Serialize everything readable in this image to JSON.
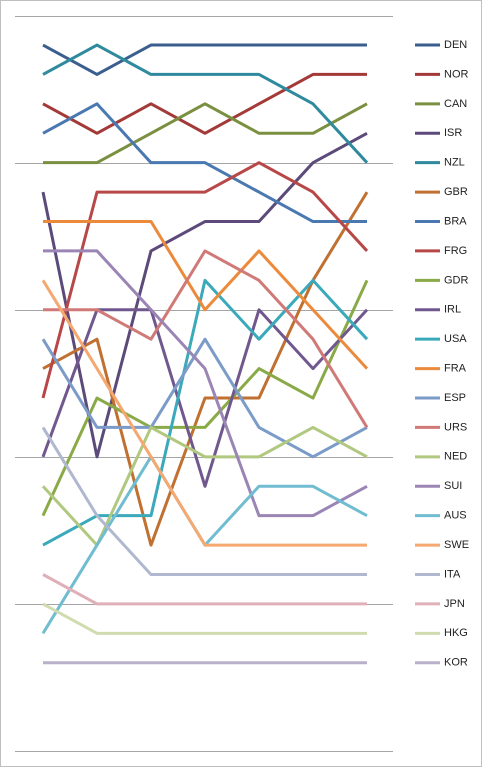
{
  "chart_data": {
    "type": "line",
    "ylim": [
      0,
      25
    ],
    "yticks": [
      0,
      5,
      10,
      15,
      20,
      25
    ],
    "grid": true,
    "inverted": true,
    "legend": "right",
    "series": [
      {
        "name": "DEN",
        "color": "#3a5f8f",
        "values": [
          1,
          2,
          1,
          1,
          1,
          1,
          1
        ]
      },
      {
        "name": "NOR",
        "color": "#a33a38",
        "values": [
          3,
          4,
          3,
          4,
          3,
          2,
          2
        ]
      },
      {
        "name": "CAN",
        "color": "#7a9040",
        "values": [
          5,
          5,
          4,
          3,
          4,
          4,
          3
        ]
      },
      {
        "name": "ISR",
        "color": "#5c4a7a",
        "values": [
          6,
          15,
          8,
          7,
          7,
          5,
          4
        ]
      },
      {
        "name": "NZL",
        "color": "#2f8a9e",
        "values": [
          2,
          1,
          2,
          2,
          2,
          3,
          5
        ]
      },
      {
        "name": "GBR",
        "color": "#c07030",
        "values": [
          12,
          11,
          18,
          13,
          13,
          9,
          6
        ]
      },
      {
        "name": "BRA",
        "color": "#4a78b0",
        "values": [
          4,
          3,
          5,
          5,
          6,
          7,
          7
        ]
      },
      {
        "name": "FRG",
        "color": "#b84848",
        "values": [
          13,
          6,
          6,
          6,
          5,
          6,
          8
        ]
      },
      {
        "name": "GDR",
        "color": "#8aaa48",
        "values": [
          17,
          13,
          14,
          14,
          12,
          13,
          9
        ]
      },
      {
        "name": "IRL",
        "color": "#70588f",
        "values": [
          15,
          10,
          10,
          16,
          10,
          12,
          10
        ]
      },
      {
        "name": "USA",
        "color": "#3aaabb",
        "values": [
          18,
          17,
          17,
          9,
          11,
          9,
          11
        ]
      },
      {
        "name": "FRA",
        "color": "#ec8a3c",
        "values": [
          7,
          7,
          7,
          10,
          8,
          10,
          12
        ]
      },
      {
        "name": "ESP",
        "color": "#7b9bc8",
        "values": [
          11,
          14,
          14,
          11,
          14,
          15,
          14
        ]
      },
      {
        "name": "URS",
        "color": "#d07a78",
        "values": [
          10,
          10,
          11,
          8,
          9,
          11,
          14
        ]
      },
      {
        "name": "NED",
        "color": "#b0c880",
        "values": [
          16,
          18,
          14,
          15,
          15,
          14,
          15
        ]
      },
      {
        "name": "SUI",
        "color": "#9a85b5",
        "values": [
          8,
          8,
          10,
          12,
          17,
          17,
          16
        ]
      },
      {
        "name": "AUS",
        "color": "#70bcd0",
        "values": [
          21,
          18,
          15,
          18,
          16,
          16,
          17
        ]
      },
      {
        "name": "SWE",
        "color": "#f5a870",
        "values": [
          9,
          12,
          15,
          18,
          18,
          18,
          18
        ]
      },
      {
        "name": "ITA",
        "color": "#b0b8d0",
        "values": [
          14,
          17,
          19,
          19,
          19,
          19,
          19
        ]
      },
      {
        "name": "JPN",
        "color": "#e0b0b8",
        "values": [
          19,
          20,
          20,
          20,
          20,
          20,
          20
        ]
      },
      {
        "name": "HKG",
        "color": "#d0dcb0",
        "values": [
          20,
          21,
          21,
          21,
          21,
          21,
          21
        ]
      },
      {
        "name": "KOR",
        "color": "#b8b0c8",
        "values": [
          22,
          22,
          22,
          22,
          22,
          22,
          22
        ]
      }
    ]
  }
}
